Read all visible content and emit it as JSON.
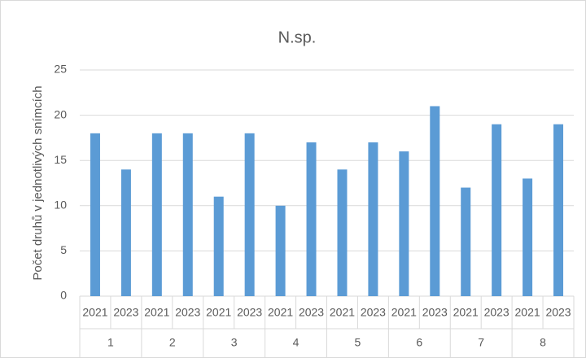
{
  "chart_data": {
    "type": "bar",
    "title": "N.sp.",
    "y_label": "Počet druhů v jednotlivých snímcích",
    "categories": [
      "2021",
      "2023",
      "2021",
      "2023",
      "2021",
      "2023",
      "2021",
      "2023",
      "2021",
      "2023",
      "2021",
      "2023",
      "2021",
      "2023",
      "2021",
      "2023"
    ],
    "groups": [
      "1",
      "2",
      "3",
      "4",
      "5",
      "6",
      "7",
      "8"
    ],
    "values": [
      18,
      14,
      18,
      18,
      11,
      18,
      10,
      17,
      14,
      17,
      16,
      21,
      12,
      19,
      13,
      19
    ],
    "color": "#5b9bd5",
    "ylim": [
      0,
      25
    ],
    "yticks": [
      0,
      5,
      10,
      15,
      20,
      25
    ],
    "grid": true
  }
}
